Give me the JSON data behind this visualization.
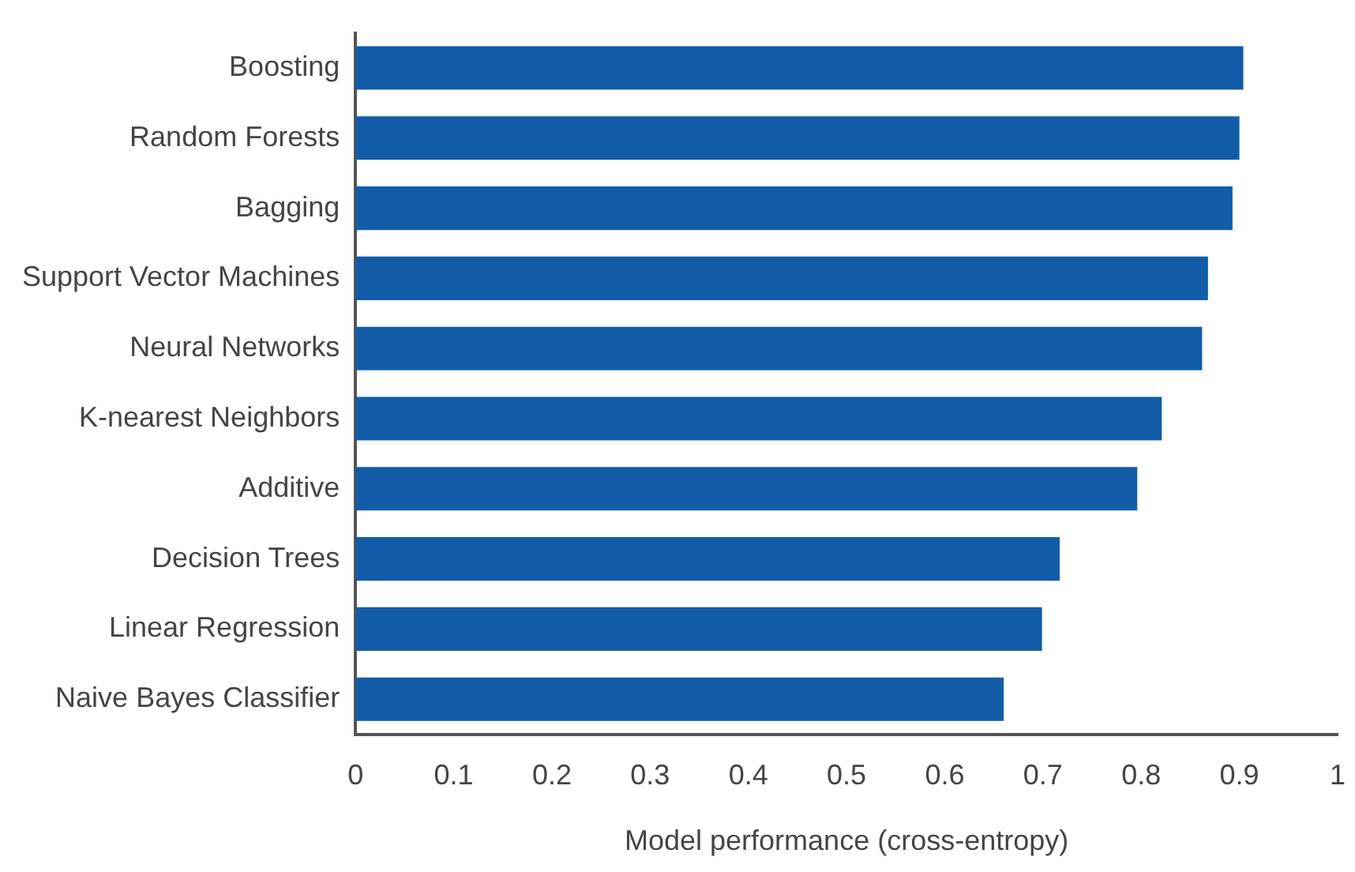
{
  "chart_data": {
    "type": "bar",
    "orientation": "horizontal",
    "xlabel": "Model performance (cross-entropy)",
    "categories": [
      "Boosting",
      "Random Forests",
      "Bagging",
      "Support Vector Machines",
      "Neural Networks",
      "K-nearest Neighbors",
      "Additive",
      "Decision Trees",
      "Linear Regression",
      "Naive Bayes Classifier"
    ],
    "values": [
      0.904,
      0.9,
      0.893,
      0.868,
      0.862,
      0.821,
      0.796,
      0.717,
      0.699,
      0.66
    ],
    "color": "#135ca8",
    "xlim": [
      0,
      1
    ],
    "xticks": [
      0,
      0.1,
      0.2,
      0.3,
      0.4,
      0.5,
      0.6,
      0.7,
      0.8,
      0.9,
      1
    ],
    "grid": false,
    "legend": false
  }
}
